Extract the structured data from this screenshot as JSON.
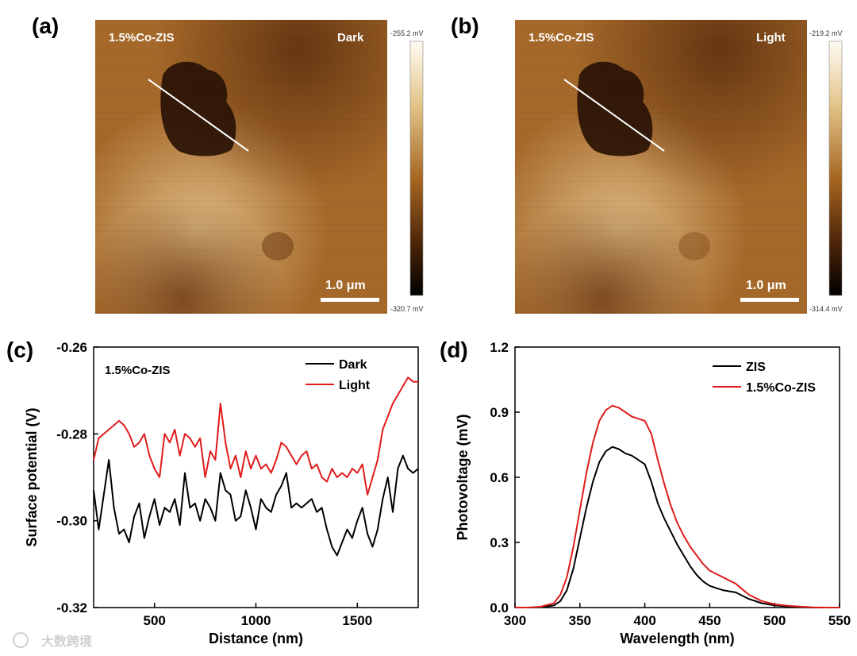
{
  "panels": {
    "a": {
      "label": "(a)",
      "sample": "1.5%Co-ZIS",
      "condition": "Dark",
      "scale_bar": "1.0 μm",
      "colorbar_max": "-255.2 mV",
      "colorbar_min": "-320.7 mV"
    },
    "b": {
      "label": "(b)",
      "sample": "1.5%Co-ZIS",
      "condition": "Light",
      "scale_bar": "1.0 μm",
      "colorbar_max": "-219.2 mV",
      "colorbar_min": "-314.4 mV"
    },
    "c": {
      "label": "(c)"
    },
    "d": {
      "label": "(d)"
    }
  },
  "colors": {
    "afm_dark": "#2a1205",
    "afm_mid": "#9a5a1c",
    "afm_light": "#e6c38a",
    "series_black": "#000000",
    "series_red": "#e01b1b"
  },
  "chart_data": [
    {
      "type": "line",
      "panel": "c",
      "annotation": "1.5%Co-ZIS",
      "xlabel": "Distance (nm)",
      "ylabel": "Surface potential (V)",
      "xlim": [
        200,
        1800
      ],
      "ylim": [
        -0.32,
        -0.26
      ],
      "xticks": [
        500,
        1000,
        1500
      ],
      "yticks": [
        -0.32,
        -0.3,
        -0.28,
        -0.26
      ],
      "ytick_labels": [
        "-0.32",
        "-0.30",
        "-0.28",
        "-0.26"
      ],
      "xtick_labels": [
        "500",
        "1000",
        "1500"
      ],
      "series": [
        {
          "name": "Dark",
          "color": "#000000",
          "x": [
            200,
            225,
            250,
            275,
            300,
            325,
            350,
            375,
            400,
            425,
            450,
            475,
            500,
            525,
            550,
            575,
            600,
            625,
            650,
            675,
            700,
            725,
            750,
            775,
            800,
            825,
            850,
            875,
            900,
            925,
            950,
            975,
            1000,
            1025,
            1050,
            1075,
            1100,
            1125,
            1150,
            1175,
            1200,
            1225,
            1250,
            1275,
            1300,
            1325,
            1350,
            1375,
            1400,
            1425,
            1450,
            1475,
            1500,
            1525,
            1550,
            1575,
            1600,
            1625,
            1650,
            1675,
            1700,
            1725,
            1750,
            1775,
            1800
          ],
          "values": [
            -0.293,
            -0.302,
            -0.294,
            -0.286,
            -0.297,
            -0.303,
            -0.302,
            -0.305,
            -0.299,
            -0.296,
            -0.304,
            -0.299,
            -0.295,
            -0.301,
            -0.297,
            -0.298,
            -0.295,
            -0.301,
            -0.289,
            -0.297,
            -0.296,
            -0.3,
            -0.295,
            -0.297,
            -0.3,
            -0.289,
            -0.293,
            -0.294,
            -0.3,
            -0.299,
            -0.293,
            -0.297,
            -0.302,
            -0.295,
            -0.297,
            -0.298,
            -0.294,
            -0.292,
            -0.289,
            -0.297,
            -0.296,
            -0.297,
            -0.296,
            -0.295,
            -0.298,
            -0.297,
            -0.302,
            -0.306,
            -0.308,
            -0.305,
            -0.302,
            -0.304,
            -0.3,
            -0.297,
            -0.303,
            -0.306,
            -0.302,
            -0.295,
            -0.29,
            -0.298,
            -0.288,
            -0.285,
            -0.288,
            -0.289,
            -0.288
          ]
        },
        {
          "name": "Light",
          "color": "#e01b1b",
          "x": [
            200,
            225,
            250,
            275,
            300,
            325,
            350,
            375,
            400,
            425,
            450,
            475,
            500,
            525,
            550,
            575,
            600,
            625,
            650,
            675,
            700,
            725,
            750,
            775,
            800,
            825,
            850,
            875,
            900,
            925,
            950,
            975,
            1000,
            1025,
            1050,
            1075,
            1100,
            1125,
            1150,
            1175,
            1200,
            1225,
            1250,
            1275,
            1300,
            1325,
            1350,
            1375,
            1400,
            1425,
            1450,
            1475,
            1500,
            1525,
            1550,
            1575,
            1600,
            1625,
            1650,
            1675,
            1700,
            1725,
            1750,
            1775,
            1800
          ],
          "values": [
            -0.286,
            -0.281,
            -0.28,
            -0.279,
            -0.278,
            -0.277,
            -0.278,
            -0.28,
            -0.283,
            -0.282,
            -0.28,
            -0.285,
            -0.288,
            -0.29,
            -0.28,
            -0.282,
            -0.279,
            -0.285,
            -0.28,
            -0.281,
            -0.283,
            -0.281,
            -0.29,
            -0.284,
            -0.286,
            -0.273,
            -0.282,
            -0.288,
            -0.285,
            -0.29,
            -0.284,
            -0.288,
            -0.285,
            -0.288,
            -0.287,
            -0.289,
            -0.286,
            -0.282,
            -0.283,
            -0.285,
            -0.287,
            -0.285,
            -0.284,
            -0.288,
            -0.287,
            -0.29,
            -0.291,
            -0.288,
            -0.29,
            -0.289,
            -0.29,
            -0.288,
            -0.289,
            -0.287,
            -0.294,
            -0.29,
            -0.286,
            -0.279,
            -0.276,
            -0.273,
            -0.271,
            -0.269,
            -0.267,
            -0.268,
            -0.268
          ]
        }
      ]
    },
    {
      "type": "line",
      "panel": "d",
      "xlabel": "Wavelength (nm)",
      "ylabel": "Photovoltage (mV)",
      "xlim": [
        300,
        550
      ],
      "ylim": [
        0.0,
        1.2
      ],
      "xticks": [
        300,
        350,
        400,
        450,
        500,
        550
      ],
      "yticks": [
        0.0,
        0.3,
        0.6,
        0.9,
        1.2
      ],
      "xtick_labels": [
        "300",
        "350",
        "400",
        "450",
        "500",
        "550"
      ],
      "ytick_labels": [
        "0.0",
        "0.3",
        "0.6",
        "0.9",
        "1.2"
      ],
      "series": [
        {
          "name": "ZIS",
          "color": "#000000",
          "x": [
            300,
            310,
            320,
            330,
            335,
            340,
            345,
            350,
            355,
            360,
            365,
            370,
            375,
            380,
            385,
            390,
            395,
            400,
            405,
            410,
            415,
            420,
            425,
            430,
            435,
            440,
            445,
            450,
            455,
            460,
            465,
            470,
            475,
            480,
            490,
            500,
            510,
            520,
            530,
            540,
            550
          ],
          "values": [
            0.0,
            0.0,
            0.002,
            0.01,
            0.03,
            0.08,
            0.18,
            0.32,
            0.46,
            0.58,
            0.67,
            0.72,
            0.74,
            0.73,
            0.71,
            0.7,
            0.68,
            0.66,
            0.58,
            0.48,
            0.41,
            0.35,
            0.29,
            0.24,
            0.19,
            0.15,
            0.12,
            0.1,
            0.09,
            0.08,
            0.075,
            0.07,
            0.055,
            0.04,
            0.02,
            0.01,
            0.005,
            0.002,
            0.0,
            0.0,
            0.0
          ]
        },
        {
          "name": "1.5%Co-ZIS",
          "color": "#e01b1b",
          "x": [
            300,
            310,
            320,
            330,
            335,
            340,
            345,
            350,
            355,
            360,
            365,
            370,
            375,
            380,
            385,
            390,
            395,
            400,
            405,
            410,
            415,
            420,
            425,
            430,
            435,
            440,
            445,
            450,
            455,
            460,
            465,
            470,
            475,
            480,
            490,
            500,
            510,
            520,
            530,
            540,
            550
          ],
          "values": [
            0.0,
            0.0,
            0.004,
            0.02,
            0.06,
            0.14,
            0.28,
            0.45,
            0.62,
            0.76,
            0.86,
            0.91,
            0.93,
            0.92,
            0.9,
            0.88,
            0.87,
            0.86,
            0.8,
            0.68,
            0.57,
            0.47,
            0.39,
            0.33,
            0.28,
            0.24,
            0.2,
            0.17,
            0.155,
            0.14,
            0.125,
            0.11,
            0.085,
            0.06,
            0.03,
            0.015,
            0.008,
            0.004,
            0.001,
            0.0,
            0.0
          ]
        }
      ]
    }
  ],
  "watermark": "大数跨境"
}
